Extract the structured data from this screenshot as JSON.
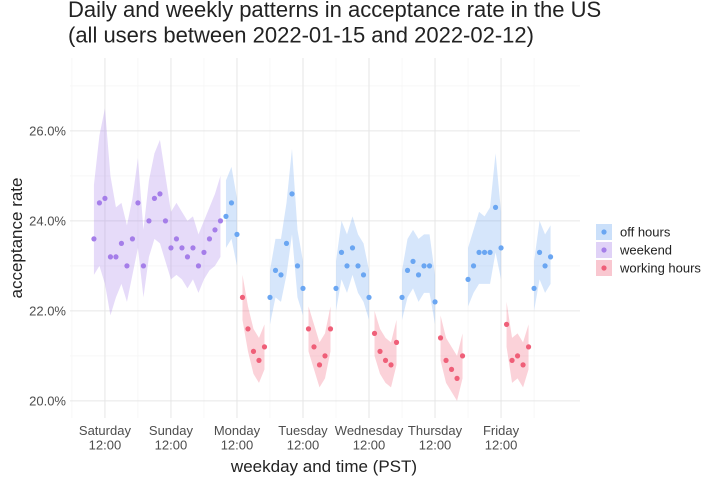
{
  "chart_data": {
    "type": "ribbon-scatter",
    "title": "Daily and weekly patterns in acceptance rate in the US\n(all users between 2022-01-15 and 2022-02-12)",
    "xlabel": "weekday and time (PST)",
    "ylabel": "acceptance rate",
    "xlim": [
      -0.7,
      184.7
    ],
    "ylim": [
      19.62,
      27.62
    ],
    "xticks": [
      {
        "value": 12,
        "label": "Saturday\n12:00"
      },
      {
        "value": 36,
        "label": "Sunday\n12:00"
      },
      {
        "value": 60,
        "label": "Monday\n12:00"
      },
      {
        "value": 84,
        "label": "Tuesday\n12:00"
      },
      {
        "value": 108,
        "label": "Wednesday\n12:00"
      },
      {
        "value": 132,
        "label": "Thursday\n12:00"
      },
      {
        "value": 156,
        "label": "Friday\n12:00"
      }
    ],
    "yticks": [
      {
        "value": 20,
        "label": "20.0%"
      },
      {
        "value": 22,
        "label": "22.0%"
      },
      {
        "value": 24,
        "label": "24.0%"
      },
      {
        "value": 26,
        "label": "26.0%"
      }
    ],
    "grid": true,
    "legend": "right",
    "series": [
      {
        "name": "off hours",
        "color": "#6aa6f2",
        "x": [
          56,
          58,
          60,
          72,
          74,
          76,
          78,
          80,
          82,
          84,
          96,
          98,
          100,
          102,
          104,
          106,
          108,
          120,
          122,
          124,
          126,
          128,
          130,
          132,
          144,
          146,
          148,
          150,
          152,
          154,
          156,
          168,
          170,
          172,
          174
        ],
        "values": [
          24.1,
          24.4,
          23.7,
          22.3,
          22.9,
          22.8,
          23.5,
          24.6,
          23.0,
          22.5,
          22.5,
          23.3,
          23.0,
          23.4,
          23.0,
          22.8,
          22.3,
          22.3,
          22.9,
          23.1,
          22.8,
          23.0,
          23.0,
          22.2,
          22.7,
          23.0,
          23.3,
          23.3,
          23.3,
          24.3,
          23.4,
          22.5,
          23.3,
          23.0,
          23.2
        ],
        "lower": [
          23.4,
          23.6,
          23.0,
          21.7,
          22.3,
          22.2,
          22.8,
          23.7,
          22.3,
          21.9,
          22.0,
          22.7,
          22.4,
          22.8,
          22.4,
          22.2,
          21.8,
          21.8,
          22.3,
          22.5,
          22.2,
          22.4,
          22.4,
          21.7,
          22.1,
          22.4,
          22.6,
          22.6,
          22.6,
          23.3,
          22.7,
          22.0,
          22.7,
          22.4,
          22.6
        ],
        "upper": [
          24.9,
          25.2,
          24.5,
          22.9,
          23.6,
          23.6,
          24.4,
          25.6,
          23.8,
          23.1,
          23.1,
          24.0,
          23.7,
          24.1,
          23.7,
          23.5,
          22.9,
          22.9,
          23.6,
          23.8,
          23.6,
          23.7,
          23.7,
          22.8,
          23.4,
          23.8,
          24.2,
          24.1,
          24.3,
          25.5,
          24.2,
          23.1,
          24.0,
          23.7,
          23.9
        ]
      },
      {
        "name": "weekend",
        "color": "#a57ee9",
        "x": [
          8,
          10,
          12,
          14,
          16,
          18,
          20,
          22,
          24,
          26,
          28,
          30,
          32,
          34,
          36,
          38,
          40,
          42,
          44,
          46,
          48,
          50,
          52,
          54
        ],
        "values": [
          23.6,
          24.4,
          24.5,
          23.2,
          23.2,
          23.5,
          23.0,
          23.6,
          24.4,
          23.0,
          24.0,
          24.5,
          24.6,
          24.0,
          23.4,
          23.6,
          23.4,
          23.2,
          23.4,
          23.0,
          23.3,
          23.6,
          23.8,
          24.0
        ],
        "lower": [
          22.8,
          23.0,
          22.6,
          21.9,
          22.3,
          22.6,
          22.2,
          22.8,
          23.4,
          22.3,
          23.2,
          23.6,
          23.5,
          23.1,
          22.7,
          22.8,
          22.7,
          22.5,
          22.7,
          22.4,
          22.7,
          22.9,
          23.0,
          23.2
        ],
        "upper": [
          24.8,
          25.9,
          26.5,
          25.0,
          24.3,
          24.4,
          23.9,
          24.5,
          25.4,
          23.8,
          24.9,
          25.5,
          25.8,
          25.0,
          24.2,
          24.4,
          24.2,
          24.0,
          24.1,
          23.7,
          24.0,
          24.3,
          24.6,
          25.0
        ]
      },
      {
        "name": "working hours",
        "color": "#ef5f78",
        "x": [
          62,
          64,
          66,
          68,
          70,
          86,
          88,
          90,
          92,
          94,
          110,
          112,
          114,
          116,
          118,
          134,
          136,
          138,
          140,
          142,
          158,
          160,
          162,
          164,
          166
        ],
        "values": [
          22.3,
          21.6,
          21.1,
          20.9,
          21.2,
          21.6,
          21.2,
          20.8,
          21.0,
          21.6,
          21.5,
          21.1,
          20.9,
          20.8,
          21.3,
          21.4,
          20.9,
          20.7,
          20.5,
          21.0,
          21.7,
          20.9,
          21.0,
          20.8,
          21.2
        ],
        "lower": [
          21.8,
          21.1,
          20.6,
          20.4,
          20.7,
          21.1,
          20.7,
          20.3,
          20.5,
          21.1,
          21.0,
          20.6,
          20.4,
          20.3,
          20.8,
          20.9,
          20.4,
          20.2,
          20.0,
          20.5,
          21.2,
          20.4,
          20.5,
          20.3,
          20.7
        ],
        "upper": [
          22.8,
          22.1,
          21.6,
          21.4,
          21.7,
          22.1,
          21.7,
          21.3,
          21.5,
          22.1,
          22.0,
          21.6,
          21.4,
          21.3,
          21.8,
          21.9,
          21.4,
          21.2,
          21.0,
          21.5,
          22.2,
          21.4,
          21.5,
          21.3,
          21.7
        ]
      }
    ]
  }
}
